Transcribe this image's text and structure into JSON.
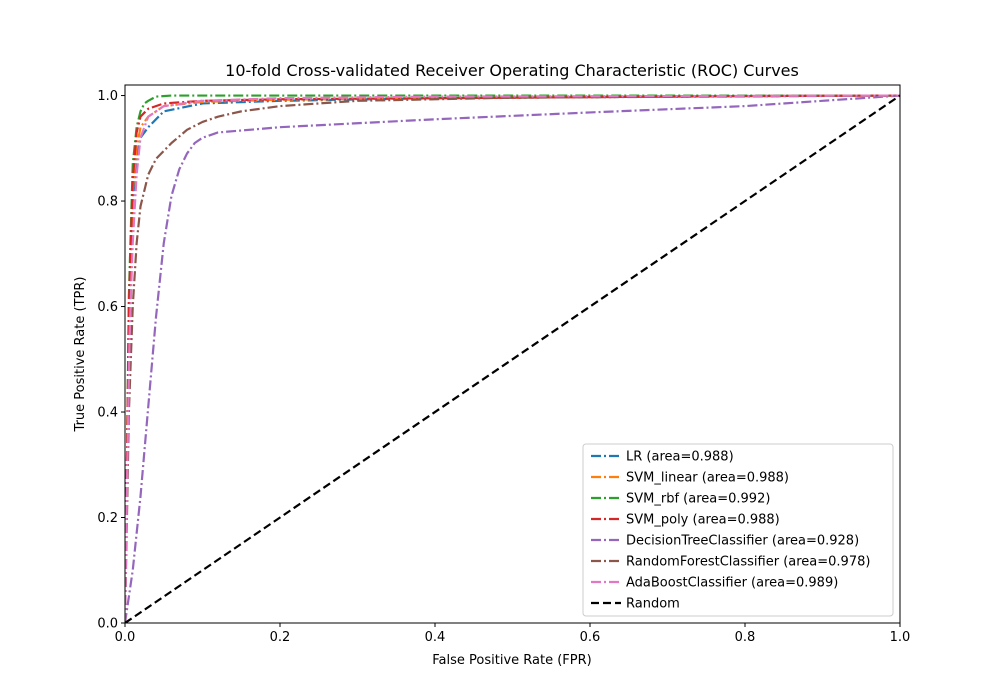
{
  "chart_data": {
    "type": "line",
    "title": "10-fold Cross-validated Receiver Operating Characteristic (ROC) Curves",
    "xlabel": "False Positive Rate (FPR)",
    "ylabel": "True Positive Rate (TPR)",
    "xlim": [
      0,
      1
    ],
    "ylim": [
      0,
      1.02
    ],
    "xticks": [
      0,
      0.2,
      0.4,
      0.6,
      0.8,
      1
    ],
    "xtick_labels": [
      "0.0",
      "0.2",
      "0.4",
      "0.6",
      "0.8",
      "1.0"
    ],
    "yticks": [
      0,
      0.2,
      0.4,
      0.6,
      0.8,
      1
    ],
    "ytick_labels": [
      "0.0",
      "0.2",
      "0.4",
      "0.6",
      "0.8",
      "1.0"
    ],
    "grid": false,
    "legend_position": "lower-right",
    "series": [
      {
        "name": "LR (area=0.988)",
        "color": "#1f77b4",
        "style": "dashdot",
        "x": [
          0,
          0.005,
          0.01,
          0.015,
          0.02,
          0.03,
          0.05,
          0.1,
          0.2,
          0.4,
          0.6,
          0.8,
          1
        ],
        "y": [
          0,
          0.55,
          0.8,
          0.88,
          0.92,
          0.94,
          0.97,
          0.985,
          0.99,
          0.995,
          0.997,
          0.999,
          1
        ]
      },
      {
        "name": "SVM_linear (area=0.988)",
        "color": "#ff7f0e",
        "style": "dashdot",
        "x": [
          0,
          0.005,
          0.01,
          0.015,
          0.02,
          0.03,
          0.05,
          0.1,
          0.2,
          0.4,
          0.6,
          0.8,
          1
        ],
        "y": [
          0,
          0.58,
          0.82,
          0.9,
          0.94,
          0.96,
          0.98,
          0.988,
          0.992,
          0.995,
          0.997,
          0.999,
          1
        ]
      },
      {
        "name": "SVM_rbf (area=0.992)",
        "color": "#2ca02c",
        "style": "dashdot",
        "x": [
          0,
          0.005,
          0.01,
          0.015,
          0.02,
          0.025,
          0.03,
          0.04,
          0.06,
          0.1,
          0.3,
          0.6,
          1
        ],
        "y": [
          0,
          0.62,
          0.87,
          0.94,
          0.97,
          0.985,
          0.99,
          0.998,
          1,
          1,
          1,
          1,
          1
        ]
      },
      {
        "name": "SVM_poly (area=0.988)",
        "color": "#d62728",
        "style": "dashdot",
        "x": [
          0,
          0.005,
          0.01,
          0.015,
          0.02,
          0.03,
          0.05,
          0.1,
          0.2,
          0.4,
          0.6,
          0.8,
          1
        ],
        "y": [
          0,
          0.6,
          0.84,
          0.93,
          0.96,
          0.975,
          0.985,
          0.99,
          0.993,
          0.995,
          0.997,
          0.999,
          1
        ]
      },
      {
        "name": "DecisionTreeClassifier (area=0.928)",
        "color": "#9467bd",
        "style": "dashdot",
        "x": [
          0,
          0.01,
          0.02,
          0.03,
          0.04,
          0.05,
          0.06,
          0.07,
          0.08,
          0.09,
          0.1,
          0.12,
          0.2,
          0.4,
          0.6,
          0.8,
          0.9,
          1
        ],
        "y": [
          0,
          0.1,
          0.24,
          0.41,
          0.58,
          0.72,
          0.81,
          0.86,
          0.89,
          0.91,
          0.92,
          0.93,
          0.94,
          0.955,
          0.968,
          0.98,
          0.99,
          1
        ]
      },
      {
        "name": "RandomForestClassifier (area=0.978)",
        "color": "#8c564b",
        "style": "dashdot",
        "x": [
          0,
          0.005,
          0.01,
          0.015,
          0.02,
          0.03,
          0.04,
          0.06,
          0.08,
          0.1,
          0.12,
          0.15,
          0.2,
          0.3,
          0.5,
          1
        ],
        "y": [
          0,
          0.4,
          0.6,
          0.72,
          0.79,
          0.85,
          0.88,
          0.91,
          0.935,
          0.95,
          0.96,
          0.97,
          0.98,
          0.99,
          0.996,
          1
        ]
      },
      {
        "name": "AdaBoostClassifier (area=0.989)",
        "color": "#e377c2",
        "style": "dashdot",
        "x": [
          0,
          0.003,
          0.006,
          0.01,
          0.015,
          0.02,
          0.03,
          0.05,
          0.1,
          0.2,
          0.4,
          0.7,
          1
        ],
        "y": [
          0,
          0.3,
          0.55,
          0.72,
          0.85,
          0.92,
          0.96,
          0.98,
          0.99,
          0.995,
          0.998,
          0.999,
          1
        ]
      },
      {
        "name": "Random",
        "color": "#000000",
        "style": "dashed",
        "x": [
          0,
          1
        ],
        "y": [
          0,
          1
        ]
      }
    ]
  }
}
